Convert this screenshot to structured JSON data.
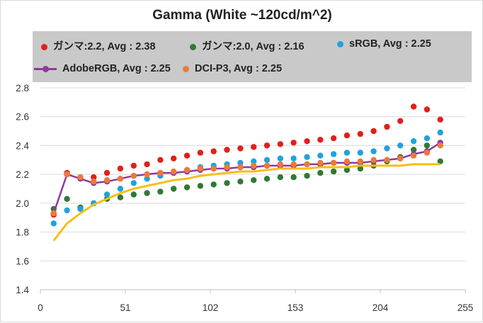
{
  "chart_data": {
    "type": "scatter",
    "title": "Gamma (White ~120cd/m^2)",
    "xlabel": "",
    "ylabel": "",
    "xlim": [
      0,
      255
    ],
    "ylim": [
      1.4,
      2.8
    ],
    "x_ticks": [
      "0",
      "51",
      "102",
      "153",
      "204",
      "255"
    ],
    "y_ticks": [
      "1.4",
      "1.6",
      "1.8",
      "2.0",
      "2.2",
      "2.4",
      "2.6",
      "2.8"
    ],
    "grid": "horizontal",
    "legend_position": "top",
    "x": [
      8,
      16,
      24,
      32,
      40,
      48,
      56,
      64,
      72,
      80,
      88,
      96,
      104,
      112,
      120,
      128,
      136,
      144,
      152,
      160,
      168,
      176,
      184,
      192,
      200,
      208,
      216,
      224,
      232,
      240
    ],
    "series": [
      {
        "name": "ガンマ:2.2, Avg : 2.38",
        "color": "#e0201a",
        "style": "markers",
        "values": [
          1.92,
          2.21,
          2.18,
          2.18,
          2.21,
          2.24,
          2.26,
          2.27,
          2.3,
          2.31,
          2.33,
          2.35,
          2.36,
          2.37,
          2.38,
          2.39,
          2.4,
          2.41,
          2.42,
          2.43,
          2.44,
          2.45,
          2.47,
          2.48,
          2.5,
          2.53,
          2.57,
          2.67,
          2.65,
          2.58
        ]
      },
      {
        "name": "ガンマ:2.0, Avg : 2.16",
        "color": "#2f7a34",
        "style": "markers",
        "values": [
          1.96,
          2.03,
          1.97,
          2.0,
          2.03,
          2.04,
          2.06,
          2.07,
          2.08,
          2.1,
          2.11,
          2.12,
          2.13,
          2.14,
          2.15,
          2.16,
          2.17,
          2.18,
          2.18,
          2.19,
          2.21,
          2.22,
          2.23,
          2.24,
          2.26,
          2.29,
          2.32,
          2.37,
          2.4,
          2.29
        ]
      },
      {
        "name": "sRGB, Avg : 2.25",
        "color": "#21a2dd",
        "style": "markers",
        "values": [
          1.86,
          1.95,
          1.96,
          2.0,
          2.06,
          2.1,
          2.14,
          2.17,
          2.19,
          2.21,
          2.23,
          2.25,
          2.26,
          2.27,
          2.28,
          2.29,
          2.3,
          2.31,
          2.31,
          2.32,
          2.33,
          2.34,
          2.35,
          2.35,
          2.36,
          2.38,
          2.4,
          2.43,
          2.45,
          2.49
        ]
      },
      {
        "name": "AdobeRGB, Avg : 2.25",
        "color": "#8e3a9e",
        "style": "line-markers",
        "values": [
          1.93,
          2.2,
          2.17,
          2.14,
          2.15,
          2.17,
          2.19,
          2.2,
          2.21,
          2.21,
          2.22,
          2.23,
          2.24,
          2.24,
          2.25,
          2.25,
          2.26,
          2.26,
          2.26,
          2.27,
          2.27,
          2.28,
          2.28,
          2.28,
          2.29,
          2.3,
          2.31,
          2.34,
          2.36,
          2.42
        ]
      },
      {
        "name": "DCI-P3, Avg : 2.25",
        "color": "#ec7a3a",
        "style": "markers",
        "values": [
          1.93,
          2.2,
          2.18,
          2.15,
          2.16,
          2.17,
          2.19,
          2.2,
          2.21,
          2.22,
          2.23,
          2.24,
          2.24,
          2.25,
          2.25,
          2.26,
          2.26,
          2.27,
          2.27,
          2.27,
          2.28,
          2.28,
          2.29,
          2.29,
          2.3,
          2.3,
          2.31,
          2.33,
          2.35,
          2.4
        ]
      },
      {
        "name": "",
        "color": "#f9be15",
        "style": "line",
        "values": [
          1.74,
          1.86,
          1.93,
          1.99,
          2.03,
          2.07,
          2.1,
          2.12,
          2.14,
          2.16,
          2.17,
          2.19,
          2.2,
          2.21,
          2.22,
          2.22,
          2.23,
          2.24,
          2.24,
          2.24,
          2.25,
          2.25,
          2.25,
          2.26,
          2.26,
          2.26,
          2.26,
          2.27,
          2.27,
          2.27
        ]
      }
    ]
  }
}
